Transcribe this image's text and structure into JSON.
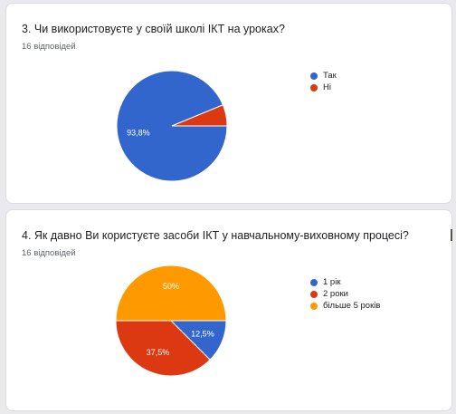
{
  "chart_data": [
    {
      "type": "pie",
      "title": "3. Чи використовуєте у своїй школі ІКТ на уроках?",
      "subtitle": "16 відповідей",
      "categories": [
        "Так",
        "Ні"
      ],
      "values": [
        93.8,
        6.2
      ],
      "colors": [
        "#3366cc",
        "#dc3912"
      ],
      "data_labels": [
        "93,8%",
        ""
      ],
      "legend": "right",
      "start_angle_deg": 0
    },
    {
      "type": "pie",
      "title": "4. Як давно Ви користуєте засоби ІКТ у навчальному-виховному процесі?",
      "subtitle": "16 відповідей",
      "categories": [
        "1 рік",
        "2 роки",
        "більше 5 років"
      ],
      "values": [
        12.5,
        37.5,
        50
      ],
      "colors": [
        "#3366cc",
        "#dc3912",
        "#ff9900"
      ],
      "data_labels": [
        "12,5%",
        "37,5%",
        "50%"
      ],
      "legend": "right",
      "start_angle_deg": 0
    }
  ]
}
